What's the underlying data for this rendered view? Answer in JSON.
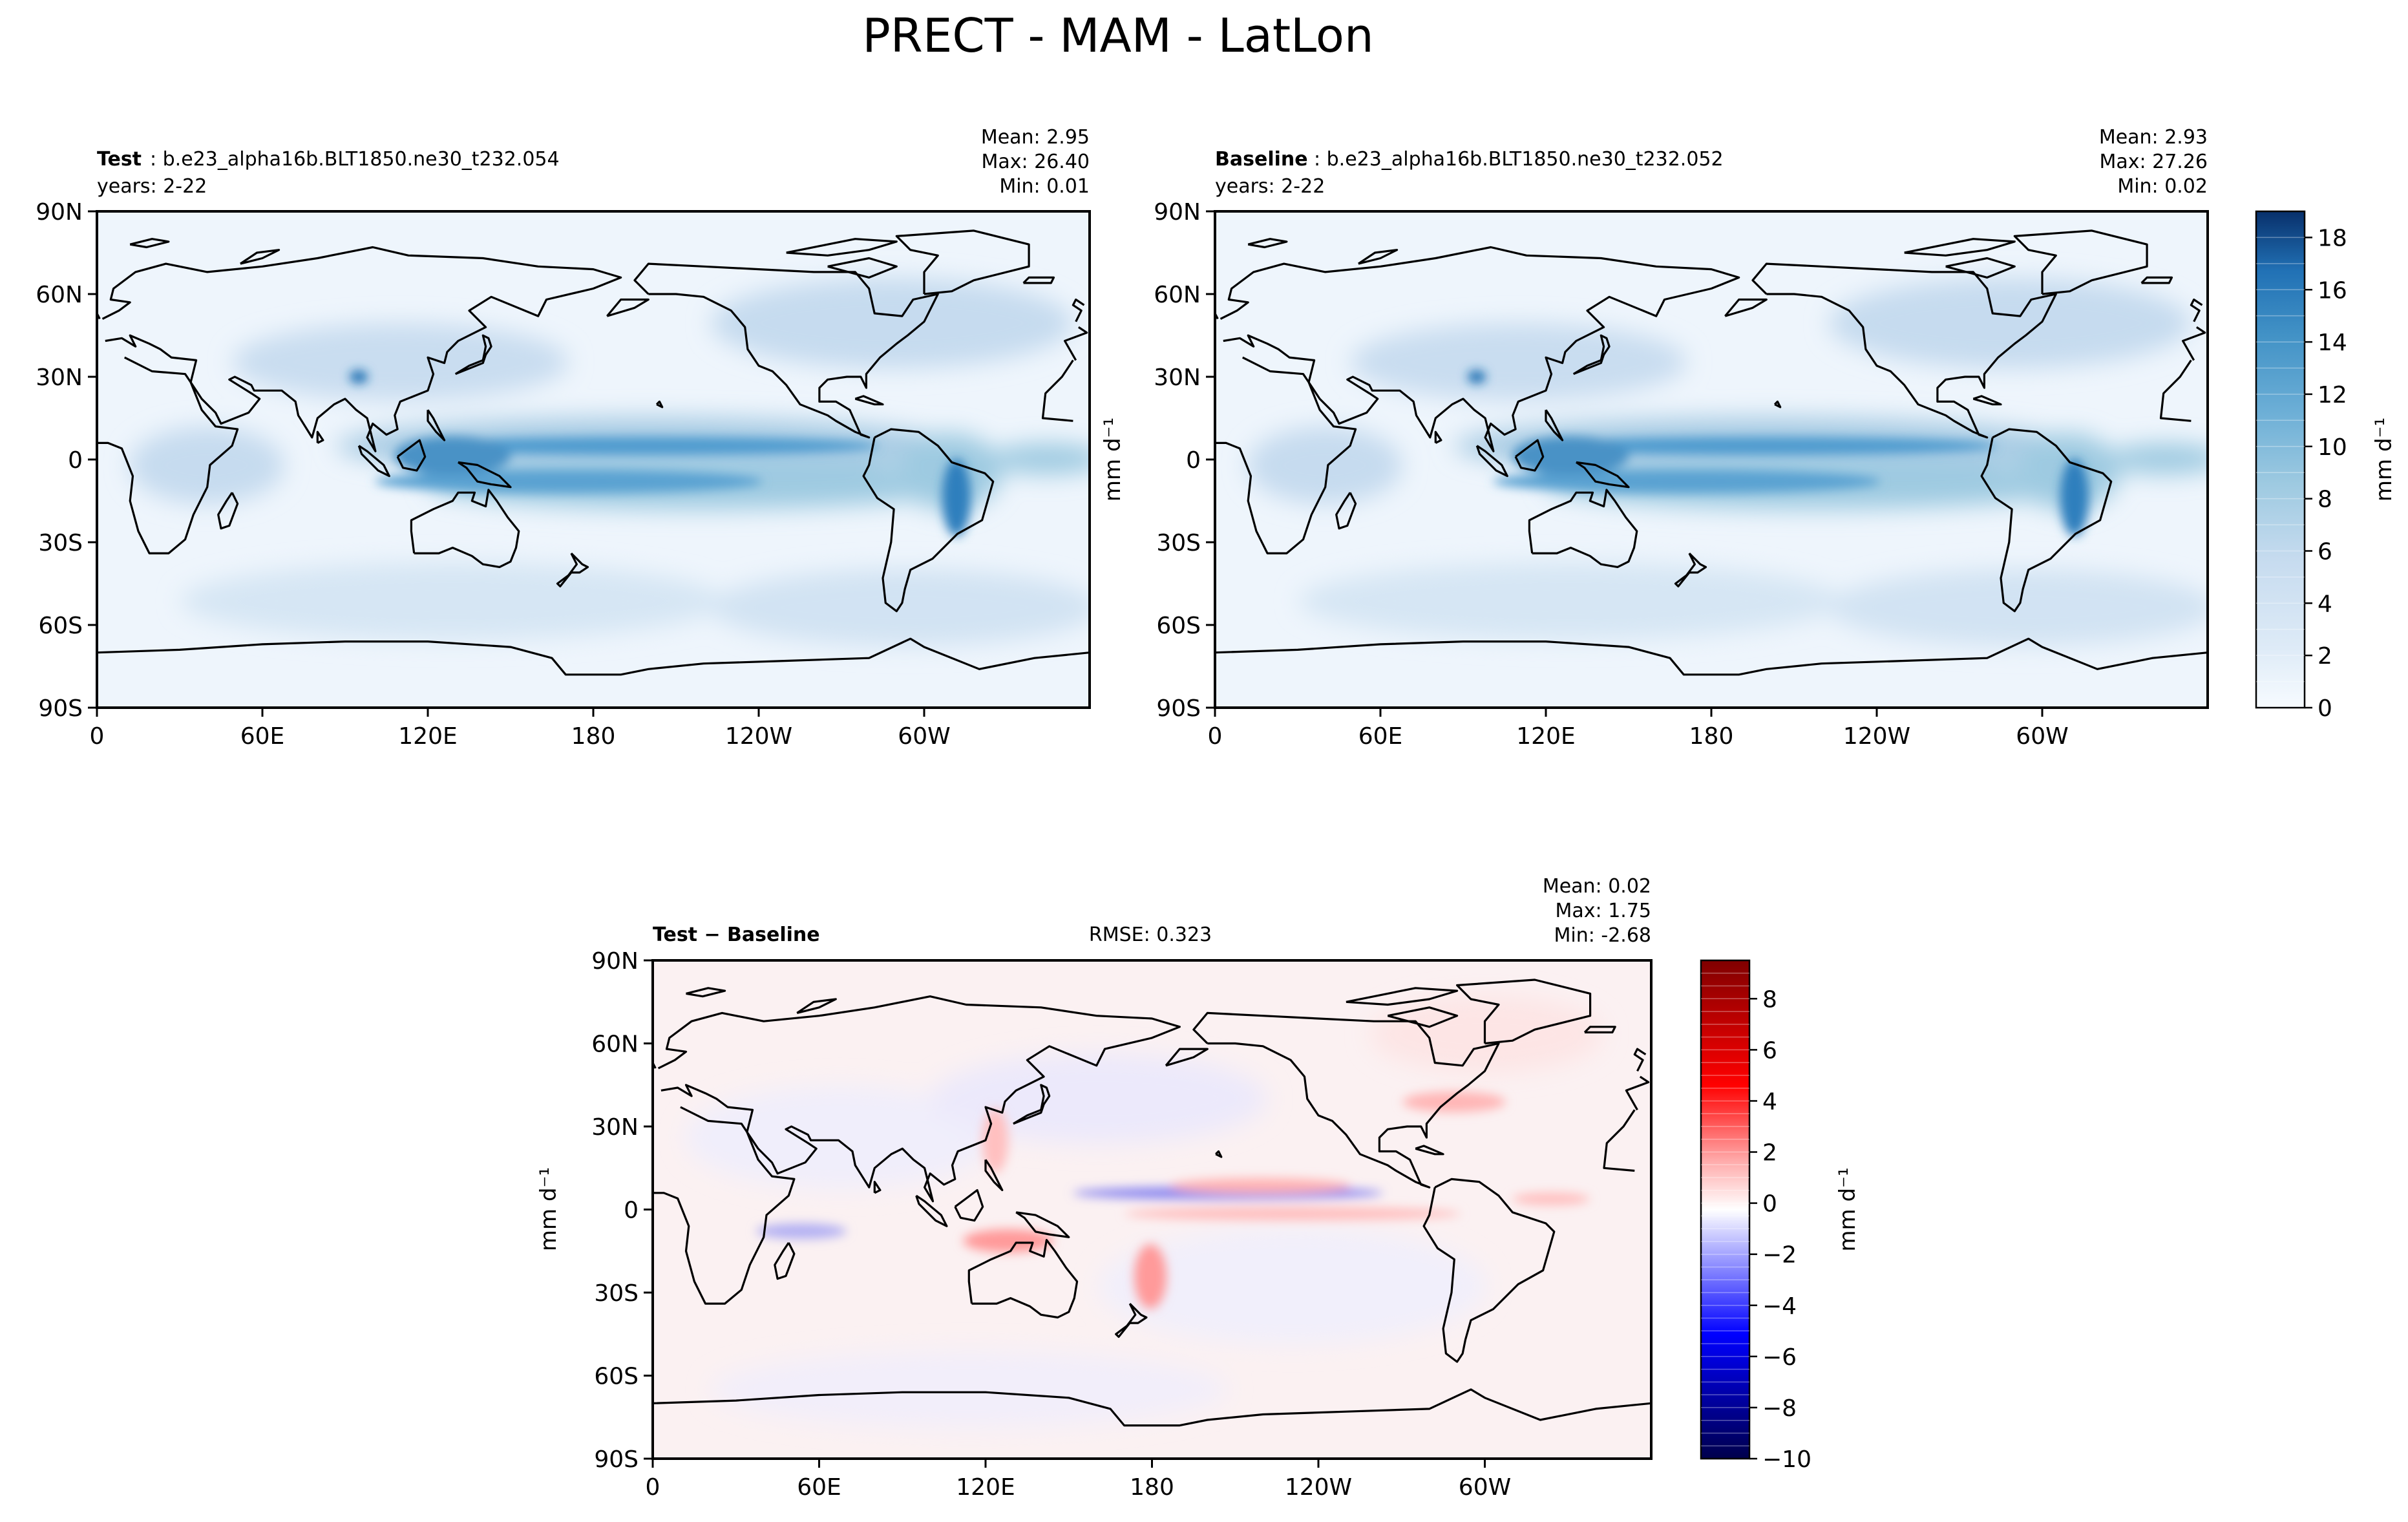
{
  "figure": {
    "title": "PRECT - MAM - LatLon"
  },
  "chart_data": [
    {
      "type": "heatmap",
      "panel": "test",
      "title_bold": "Test",
      "title_rest": ": b.e23_alpha16b.BLT1850.ne30_t232.054",
      "subtitle": "years: 2-22",
      "stats": [
        "Mean:  2.95",
        "Max: 26.40",
        "Min:  0.01"
      ],
      "x_ticks": [
        "0",
        "60E",
        "120E",
        "180",
        "120W",
        "60W"
      ],
      "y_ticks": [
        "90N",
        "60N",
        "30N",
        "0",
        "30S",
        "60S",
        "90S"
      ],
      "x_range": [
        0,
        360
      ],
      "y_range": [
        -90,
        90
      ],
      "colorbar": {
        "label": "mm d⁻¹",
        "ticks": [
          "0",
          "2",
          "4",
          "6",
          "8",
          "10",
          "12",
          "14",
          "16",
          "18"
        ],
        "range": [
          0,
          19
        ],
        "colormap": "Blues"
      }
    },
    {
      "type": "heatmap",
      "panel": "baseline",
      "title_bold": "Baseline",
      "title_rest": ": b.e23_alpha16b.BLT1850.ne30_t232.052",
      "subtitle": "years: 2-22",
      "stats": [
        "Mean:  2.93",
        "Max: 27.26",
        "Min:  0.02"
      ],
      "x_ticks": [
        "0",
        "60E",
        "120E",
        "180",
        "120W",
        "60W"
      ],
      "y_ticks": [
        "90N",
        "60N",
        "30N",
        "0",
        "30S",
        "60S",
        "90S"
      ],
      "x_range": [
        0,
        360
      ],
      "y_range": [
        -90,
        90
      ],
      "ylabel": "mm d⁻¹",
      "colorbar": {
        "label": "mm d⁻¹",
        "ticks": [
          "0",
          "2",
          "4",
          "6",
          "8",
          "10",
          "12",
          "14",
          "16",
          "18"
        ],
        "range": [
          0,
          19
        ],
        "colormap": "Blues"
      }
    },
    {
      "type": "heatmap",
      "panel": "difference",
      "title_bold": "Test − Baseline",
      "rmse": "RMSE: 0.323",
      "stats": [
        "Mean:  0.02",
        "Max:  1.75",
        "Min: -2.68"
      ],
      "x_ticks": [
        "0",
        "60E",
        "120E",
        "180",
        "120W",
        "60W"
      ],
      "y_ticks": [
        "90N",
        "60N",
        "30N",
        "0",
        "30S",
        "60S",
        "90S"
      ],
      "x_range": [
        0,
        360
      ],
      "y_range": [
        -90,
        90
      ],
      "ylabel": "mm d⁻¹",
      "colorbar": {
        "label": "mm d⁻¹",
        "ticks": [
          "−10",
          "−8",
          "−6",
          "−4",
          "−2",
          "0",
          "2",
          "4",
          "6",
          "8"
        ],
        "range": [
          -10,
          9.5
        ],
        "colormap": "seismic"
      }
    }
  ],
  "colors": {
    "blues_dark": "#08306b",
    "blues_light": "#f7fbff",
    "diff_red": "#ff0000",
    "diff_blue": "#0000ff",
    "coast": "#000000"
  }
}
